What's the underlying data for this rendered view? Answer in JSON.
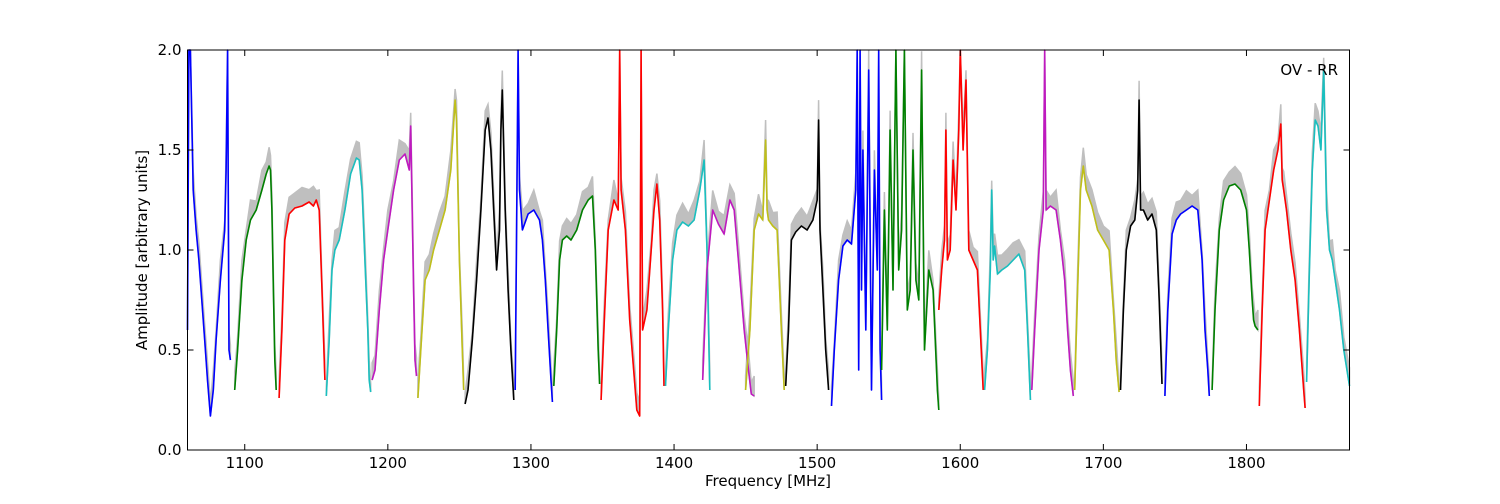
{
  "chart_data": {
    "type": "line",
    "title": "",
    "annotation": "OV - RR",
    "xlabel": "Frequency [MHz]",
    "ylabel": "Amplitude [arbitrary units]",
    "xlim": [
      1060,
      1872
    ],
    "ylim": [
      0.0,
      2.0
    ],
    "xticks": [
      1100,
      1200,
      1300,
      1400,
      1500,
      1600,
      1700,
      1800
    ],
    "yticks": [
      0.0,
      0.5,
      1.0,
      1.5,
      2.0
    ],
    "xtick_labels": [
      "1100",
      "1200",
      "1300",
      "1400",
      "1500",
      "1600",
      "1700",
      "1800"
    ],
    "ytick_labels": [
      "0.0",
      "0.5",
      "1.0",
      "1.5",
      "2.0"
    ],
    "grid": false,
    "legend": "none",
    "colors": {
      "envelope": "#bfbfbf",
      "blue": "#0000ff",
      "green": "#008000",
      "red": "#ff0000",
      "cyan": "#19bfbf",
      "magenta": "#bf19bf",
      "yellow": "#bfbf19",
      "black": "#000000"
    },
    "series": [
      {
        "color": "blue",
        "x": [
          1060,
          1061,
          1062,
          1064,
          1066,
          1068,
          1070,
          1072,
          1074,
          1076,
          1078,
          1080,
          1083,
          1086,
          1087,
          1088,
          1089,
          1090
        ],
        "y": [
          0.6,
          2.0,
          2.0,
          1.3,
          1.1,
          0.95,
          0.75,
          0.55,
          0.35,
          0.17,
          0.3,
          0.55,
          0.85,
          1.1,
          1.4,
          2.0,
          0.5,
          0.45
        ]
      },
      {
        "color": "green",
        "x": [
          1093,
          1095,
          1098,
          1101,
          1104,
          1108,
          1112,
          1115,
          1117,
          1118,
          1119,
          1120,
          1121,
          1122
        ],
        "y": [
          0.3,
          0.5,
          0.85,
          1.05,
          1.15,
          1.2,
          1.3,
          1.38,
          1.42,
          1.4,
          1.2,
          0.8,
          0.45,
          0.3
        ]
      },
      {
        "color": "red",
        "x": [
          1124,
          1126,
          1128,
          1131,
          1135,
          1140,
          1145,
          1148,
          1150,
          1152,
          1154,
          1156
        ],
        "y": [
          0.26,
          0.6,
          1.05,
          1.18,
          1.21,
          1.22,
          1.24,
          1.22,
          1.25,
          1.2,
          0.8,
          0.35
        ]
      },
      {
        "color": "cyan",
        "x": [
          1157,
          1159,
          1161,
          1163,
          1166,
          1170,
          1174,
          1178,
          1180,
          1182,
          1184,
          1186,
          1187,
          1188
        ],
        "y": [
          0.27,
          0.55,
          0.9,
          1.0,
          1.05,
          1.2,
          1.38,
          1.46,
          1.45,
          1.3,
          0.95,
          0.6,
          0.35,
          0.29
        ]
      },
      {
        "color": "magenta",
        "x": [
          1189,
          1191,
          1194,
          1197,
          1200,
          1204,
          1208,
          1212,
          1215,
          1216,
          1217,
          1218,
          1219,
          1220
        ],
        "y": [
          0.35,
          0.4,
          0.7,
          0.95,
          1.1,
          1.3,
          1.45,
          1.48,
          1.4,
          1.62,
          1.2,
          0.8,
          0.45,
          0.37
        ]
      },
      {
        "color": "yellow",
        "x": [
          1221,
          1223,
          1226,
          1229,
          1232,
          1236,
          1240,
          1244,
          1247,
          1248,
          1250,
          1252,
          1253
        ],
        "y": [
          0.26,
          0.5,
          0.85,
          0.9,
          1.0,
          1.1,
          1.2,
          1.4,
          1.75,
          1.65,
          0.95,
          0.5,
          0.3
        ]
      },
      {
        "color": "black",
        "x": [
          1254,
          1256,
          1259,
          1262,
          1265,
          1268,
          1270,
          1272,
          1274,
          1276,
          1278,
          1279,
          1280,
          1282,
          1284,
          1286,
          1288
        ],
        "y": [
          0.23,
          0.3,
          0.55,
          0.85,
          1.2,
          1.6,
          1.66,
          1.5,
          1.2,
          0.9,
          1.1,
          1.6,
          1.8,
          1.2,
          0.8,
          0.5,
          0.25
        ]
      },
      {
        "color": "blue",
        "x": [
          1289,
          1290,
          1291,
          1292,
          1294,
          1298,
          1302,
          1306,
          1308,
          1310,
          1312,
          1314,
          1315
        ],
        "y": [
          0.3,
          1.1,
          2.0,
          1.3,
          1.1,
          1.18,
          1.2,
          1.15,
          1.05,
          0.85,
          0.6,
          0.35,
          0.24
        ]
      },
      {
        "color": "green",
        "x": [
          1316,
          1318,
          1320,
          1322,
          1325,
          1328,
          1332,
          1336,
          1340,
          1343,
          1345,
          1347,
          1348
        ],
        "y": [
          0.32,
          0.6,
          0.95,
          1.05,
          1.07,
          1.05,
          1.1,
          1.2,
          1.25,
          1.27,
          1.0,
          0.5,
          0.33
        ]
      },
      {
        "color": "red",
        "x": [
          1349,
          1351,
          1354,
          1358,
          1361,
          1362,
          1363,
          1366,
          1369,
          1372,
          1374,
          1376,
          1377,
          1378,
          1381,
          1384,
          1386,
          1388,
          1390,
          1392,
          1393
        ],
        "y": [
          0.25,
          0.6,
          1.1,
          1.25,
          1.2,
          2.0,
          1.3,
          1.1,
          0.65,
          0.38,
          0.2,
          0.17,
          2.0,
          0.6,
          0.7,
          1.0,
          1.2,
          1.33,
          1.15,
          0.7,
          0.32
        ]
      },
      {
        "color": "cyan",
        "x": [
          1394,
          1396,
          1399,
          1402,
          1406,
          1410,
          1414,
          1418,
          1421,
          1423,
          1425
        ],
        "y": [
          0.32,
          0.6,
          0.95,
          1.1,
          1.14,
          1.12,
          1.15,
          1.3,
          1.45,
          1.0,
          0.3
        ]
      },
      {
        "color": "magenta",
        "x": [
          1420,
          1423,
          1427,
          1431,
          1435,
          1439,
          1442,
          1445,
          1449,
          1452,
          1454,
          1456
        ],
        "y": [
          0.35,
          0.9,
          1.2,
          1.13,
          1.08,
          1.25,
          1.2,
          0.95,
          0.6,
          0.4,
          0.28,
          0.27
        ]
      },
      {
        "color": "yellow",
        "x": [
          1450,
          1453,
          1456,
          1459,
          1462,
          1464,
          1465,
          1466,
          1469,
          1472,
          1475,
          1477
        ],
        "y": [
          0.3,
          0.6,
          1.1,
          1.18,
          1.15,
          1.55,
          1.2,
          1.15,
          1.12,
          1.1,
          0.6,
          0.3
        ]
      },
      {
        "color": "black",
        "x": [
          1478,
          1480,
          1482,
          1485,
          1489,
          1493,
          1497,
          1500,
          1501,
          1502,
          1504,
          1506,
          1508
        ],
        "y": [
          0.32,
          0.6,
          1.05,
          1.09,
          1.12,
          1.1,
          1.15,
          1.25,
          1.65,
          1.1,
          0.8,
          0.5,
          0.3
        ]
      },
      {
        "color": "blue",
        "x": [
          1510,
          1512,
          1515,
          1518,
          1521,
          1524,
          1527,
          1528,
          1529,
          1530,
          1531,
          1532,
          1534,
          1536,
          1538,
          1540,
          1542,
          1543,
          1544,
          1545
        ],
        "y": [
          0.22,
          0.5,
          0.85,
          1.02,
          1.05,
          1.03,
          1.3,
          2.0,
          0.4,
          2.0,
          0.8,
          1.5,
          0.6,
          1.9,
          0.3,
          1.4,
          0.9,
          2.0,
          0.5,
          0.25
        ]
      },
      {
        "color": "green",
        "x": [
          1545,
          1547,
          1549,
          1551,
          1553,
          1555,
          1557,
          1559,
          1561,
          1563,
          1565,
          1567,
          1569,
          1571,
          1573,
          1575,
          1578,
          1581,
          1584,
          1585
        ],
        "y": [
          0.4,
          1.2,
          0.6,
          1.6,
          0.8,
          2.0,
          0.9,
          1.1,
          2.0,
          0.7,
          0.8,
          1.5,
          0.85,
          0.75,
          1.9,
          0.5,
          0.9,
          0.8,
          0.3,
          0.2
        ]
      },
      {
        "color": "red",
        "x": [
          1585,
          1587,
          1589,
          1590,
          1591,
          1593,
          1595,
          1597,
          1599,
          1600,
          1602,
          1604,
          1606,
          1609,
          1612,
          1614,
          1616
        ],
        "y": [
          0.7,
          0.9,
          1.05,
          1.6,
          0.95,
          1.0,
          1.45,
          1.2,
          1.6,
          2.0,
          1.5,
          1.85,
          1.0,
          0.95,
          0.9,
          0.6,
          0.3
        ]
      },
      {
        "color": "cyan",
        "x": [
          1617,
          1619,
          1621,
          1622,
          1623,
          1624,
          1626,
          1629,
          1633,
          1637,
          1641,
          1645,
          1647,
          1649
        ],
        "y": [
          0.3,
          0.5,
          0.9,
          1.3,
          0.95,
          1.02,
          0.88,
          0.9,
          0.92,
          0.95,
          0.98,
          0.9,
          0.6,
          0.25
        ]
      },
      {
        "color": "magenta",
        "x": [
          1650,
          1652,
          1655,
          1658,
          1659,
          1660,
          1663,
          1667,
          1670,
          1673,
          1675,
          1677,
          1679
        ],
        "y": [
          0.3,
          0.6,
          1.0,
          1.2,
          2.0,
          1.2,
          1.22,
          1.2,
          1.05,
          0.85,
          0.6,
          0.4,
          0.27
        ]
      },
      {
        "color": "yellow",
        "x": [
          1680,
          1682,
          1684,
          1686,
          1688,
          1692,
          1696,
          1700,
          1704,
          1707,
          1709,
          1711
        ],
        "y": [
          0.3,
          0.8,
          1.3,
          1.42,
          1.3,
          1.22,
          1.1,
          1.05,
          1.0,
          0.7,
          0.45,
          0.29
        ]
      },
      {
        "color": "black",
        "x": [
          1712,
          1714,
          1716,
          1719,
          1722,
          1724,
          1725,
          1726,
          1728,
          1731,
          1734,
          1737,
          1739,
          1741
        ],
        "y": [
          0.3,
          0.7,
          1.0,
          1.12,
          1.15,
          1.3,
          1.75,
          1.2,
          1.2,
          1.15,
          1.18,
          1.1,
          0.75,
          0.33
        ]
      },
      {
        "color": "blue",
        "x": [
          1743,
          1745,
          1748,
          1751,
          1754,
          1758,
          1762,
          1766,
          1769,
          1771,
          1773,
          1774
        ],
        "y": [
          0.27,
          0.7,
          1.08,
          1.15,
          1.18,
          1.2,
          1.22,
          1.2,
          0.95,
          0.6,
          0.4,
          0.27
        ]
      },
      {
        "color": "green",
        "x": [
          1776,
          1778,
          1781,
          1784,
          1788,
          1792,
          1796,
          1800,
          1802,
          1804,
          1805,
          1806,
          1808
        ],
        "y": [
          0.3,
          0.7,
          1.1,
          1.25,
          1.32,
          1.33,
          1.3,
          1.2,
          1.0,
          0.75,
          0.65,
          0.62,
          0.6
        ]
      },
      {
        "color": "red",
        "x": [
          1809,
          1811,
          1813,
          1816,
          1819,
          1822,
          1824,
          1825,
          1826,
          1828,
          1831,
          1834,
          1837,
          1840,
          1841
        ],
        "y": [
          0.22,
          0.7,
          1.1,
          1.25,
          1.4,
          1.5,
          1.63,
          1.35,
          1.3,
          1.2,
          1.0,
          0.85,
          0.6,
          0.3,
          0.21
        ]
      },
      {
        "color": "cyan",
        "x": [
          1842,
          1844,
          1846,
          1848,
          1850,
          1852,
          1854,
          1856,
          1858,
          1860,
          1862,
          1865,
          1868,
          1872
        ],
        "y": [
          0.34,
          0.9,
          1.4,
          1.65,
          1.62,
          1.5,
          1.9,
          1.2,
          1.0,
          0.95,
          0.85,
          0.7,
          0.5,
          0.32
        ]
      }
    ]
  }
}
